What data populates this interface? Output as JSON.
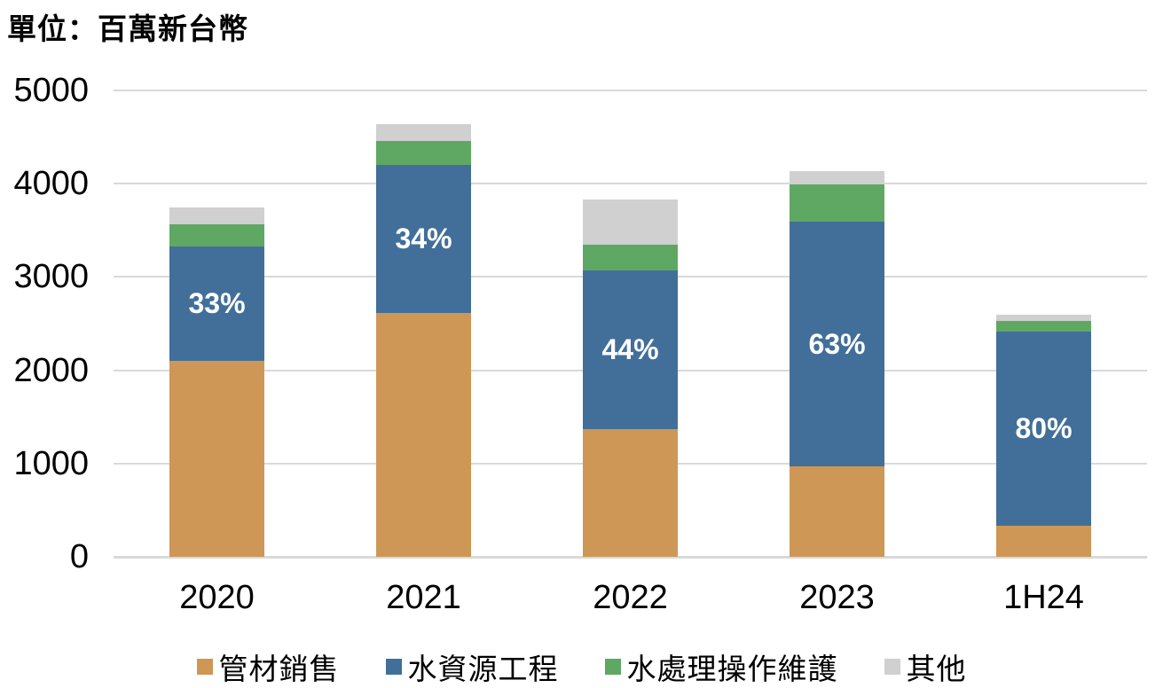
{
  "title": "單位：百萬新台幣",
  "chart_data": {
    "type": "bar",
    "stacked": true,
    "title": "單位：百萬新台幣",
    "categories": [
      "2020",
      "2021",
      "2022",
      "2023",
      "1H24"
    ],
    "series": [
      {
        "name": "管材銷售",
        "color": "#ce9755",
        "values": [
          2100,
          2610,
          1370,
          970,
          330
        ]
      },
      {
        "name": "水資源工程",
        "color": "#426f99",
        "values": [
          1230,
          1590,
          1700,
          2620,
          2085
        ]
      },
      {
        "name": "水處理操作維護",
        "color": "#5fa863",
        "values": [
          235,
          260,
          280,
          400,
          115
        ]
      },
      {
        "name": "其他",
        "color": "#d0d0d0",
        "values": [
          180,
          175,
          480,
          150,
          70
        ]
      }
    ],
    "totals": [
      3745,
      4635,
      3830,
      4140,
      2600
    ],
    "segment_labels": {
      "series": "水資源工程",
      "values": [
        "33%",
        "34%",
        "44%",
        "63%",
        "80%"
      ]
    },
    "ylim": [
      0,
      5000
    ],
    "yticks": [
      0,
      1000,
      2000,
      3000,
      4000,
      5000
    ],
    "grid": true,
    "legend_position": "bottom",
    "colors": {
      "gridline": "#d9d9d9",
      "axis_text": "#000000",
      "segment_label_text": "#ffffff"
    }
  }
}
